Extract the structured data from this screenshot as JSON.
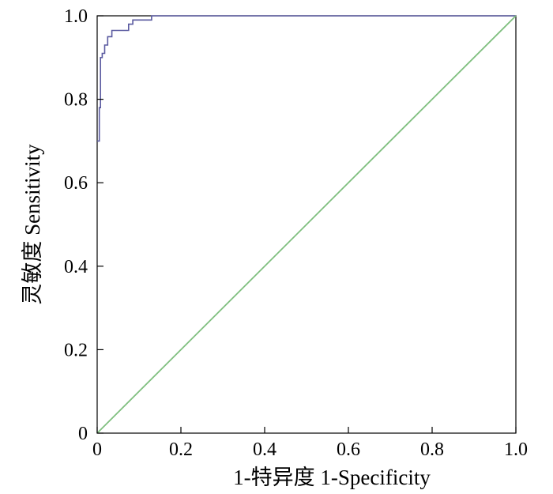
{
  "chart_data": {
    "type": "line",
    "title": "",
    "xlabel": "1-特异度 1-Specificity",
    "ylabel": "灵敏度 Sensitivity",
    "xlim": [
      0,
      1
    ],
    "ylim": [
      0,
      1
    ],
    "x_ticks": [
      0,
      0.2,
      0.4,
      0.6,
      0.8,
      1.0
    ],
    "x_tick_labels": [
      "0",
      "0.2",
      "0.4",
      "0.6",
      "0.8",
      "1.0"
    ],
    "y_ticks": [
      0,
      0.2,
      0.4,
      0.6,
      0.8,
      1.0
    ],
    "y_tick_labels": [
      "0",
      "0.2",
      "0.4",
      "0.6",
      "0.8",
      "1.0"
    ],
    "grid": false,
    "series": [
      {
        "color": "#5a5aa0",
        "x": [
          0,
          0.005,
          0.005,
          0.008,
          0.008,
          0.012,
          0.012,
          0.018,
          0.018,
          0.025,
          0.025,
          0.035,
          0.035,
          0.075,
          0.075,
          0.085,
          0.085,
          0.13,
          0.13,
          1.0
        ],
        "y": [
          0.7,
          0.7,
          0.78,
          0.78,
          0.9,
          0.9,
          0.91,
          0.91,
          0.93,
          0.93,
          0.95,
          0.95,
          0.965,
          0.965,
          0.98,
          0.98,
          0.99,
          0.99,
          1.0,
          1.0
        ]
      },
      {
        "color": "#7fbf7f",
        "x": [
          0,
          1
        ],
        "y": [
          0,
          1
        ]
      }
    ]
  }
}
